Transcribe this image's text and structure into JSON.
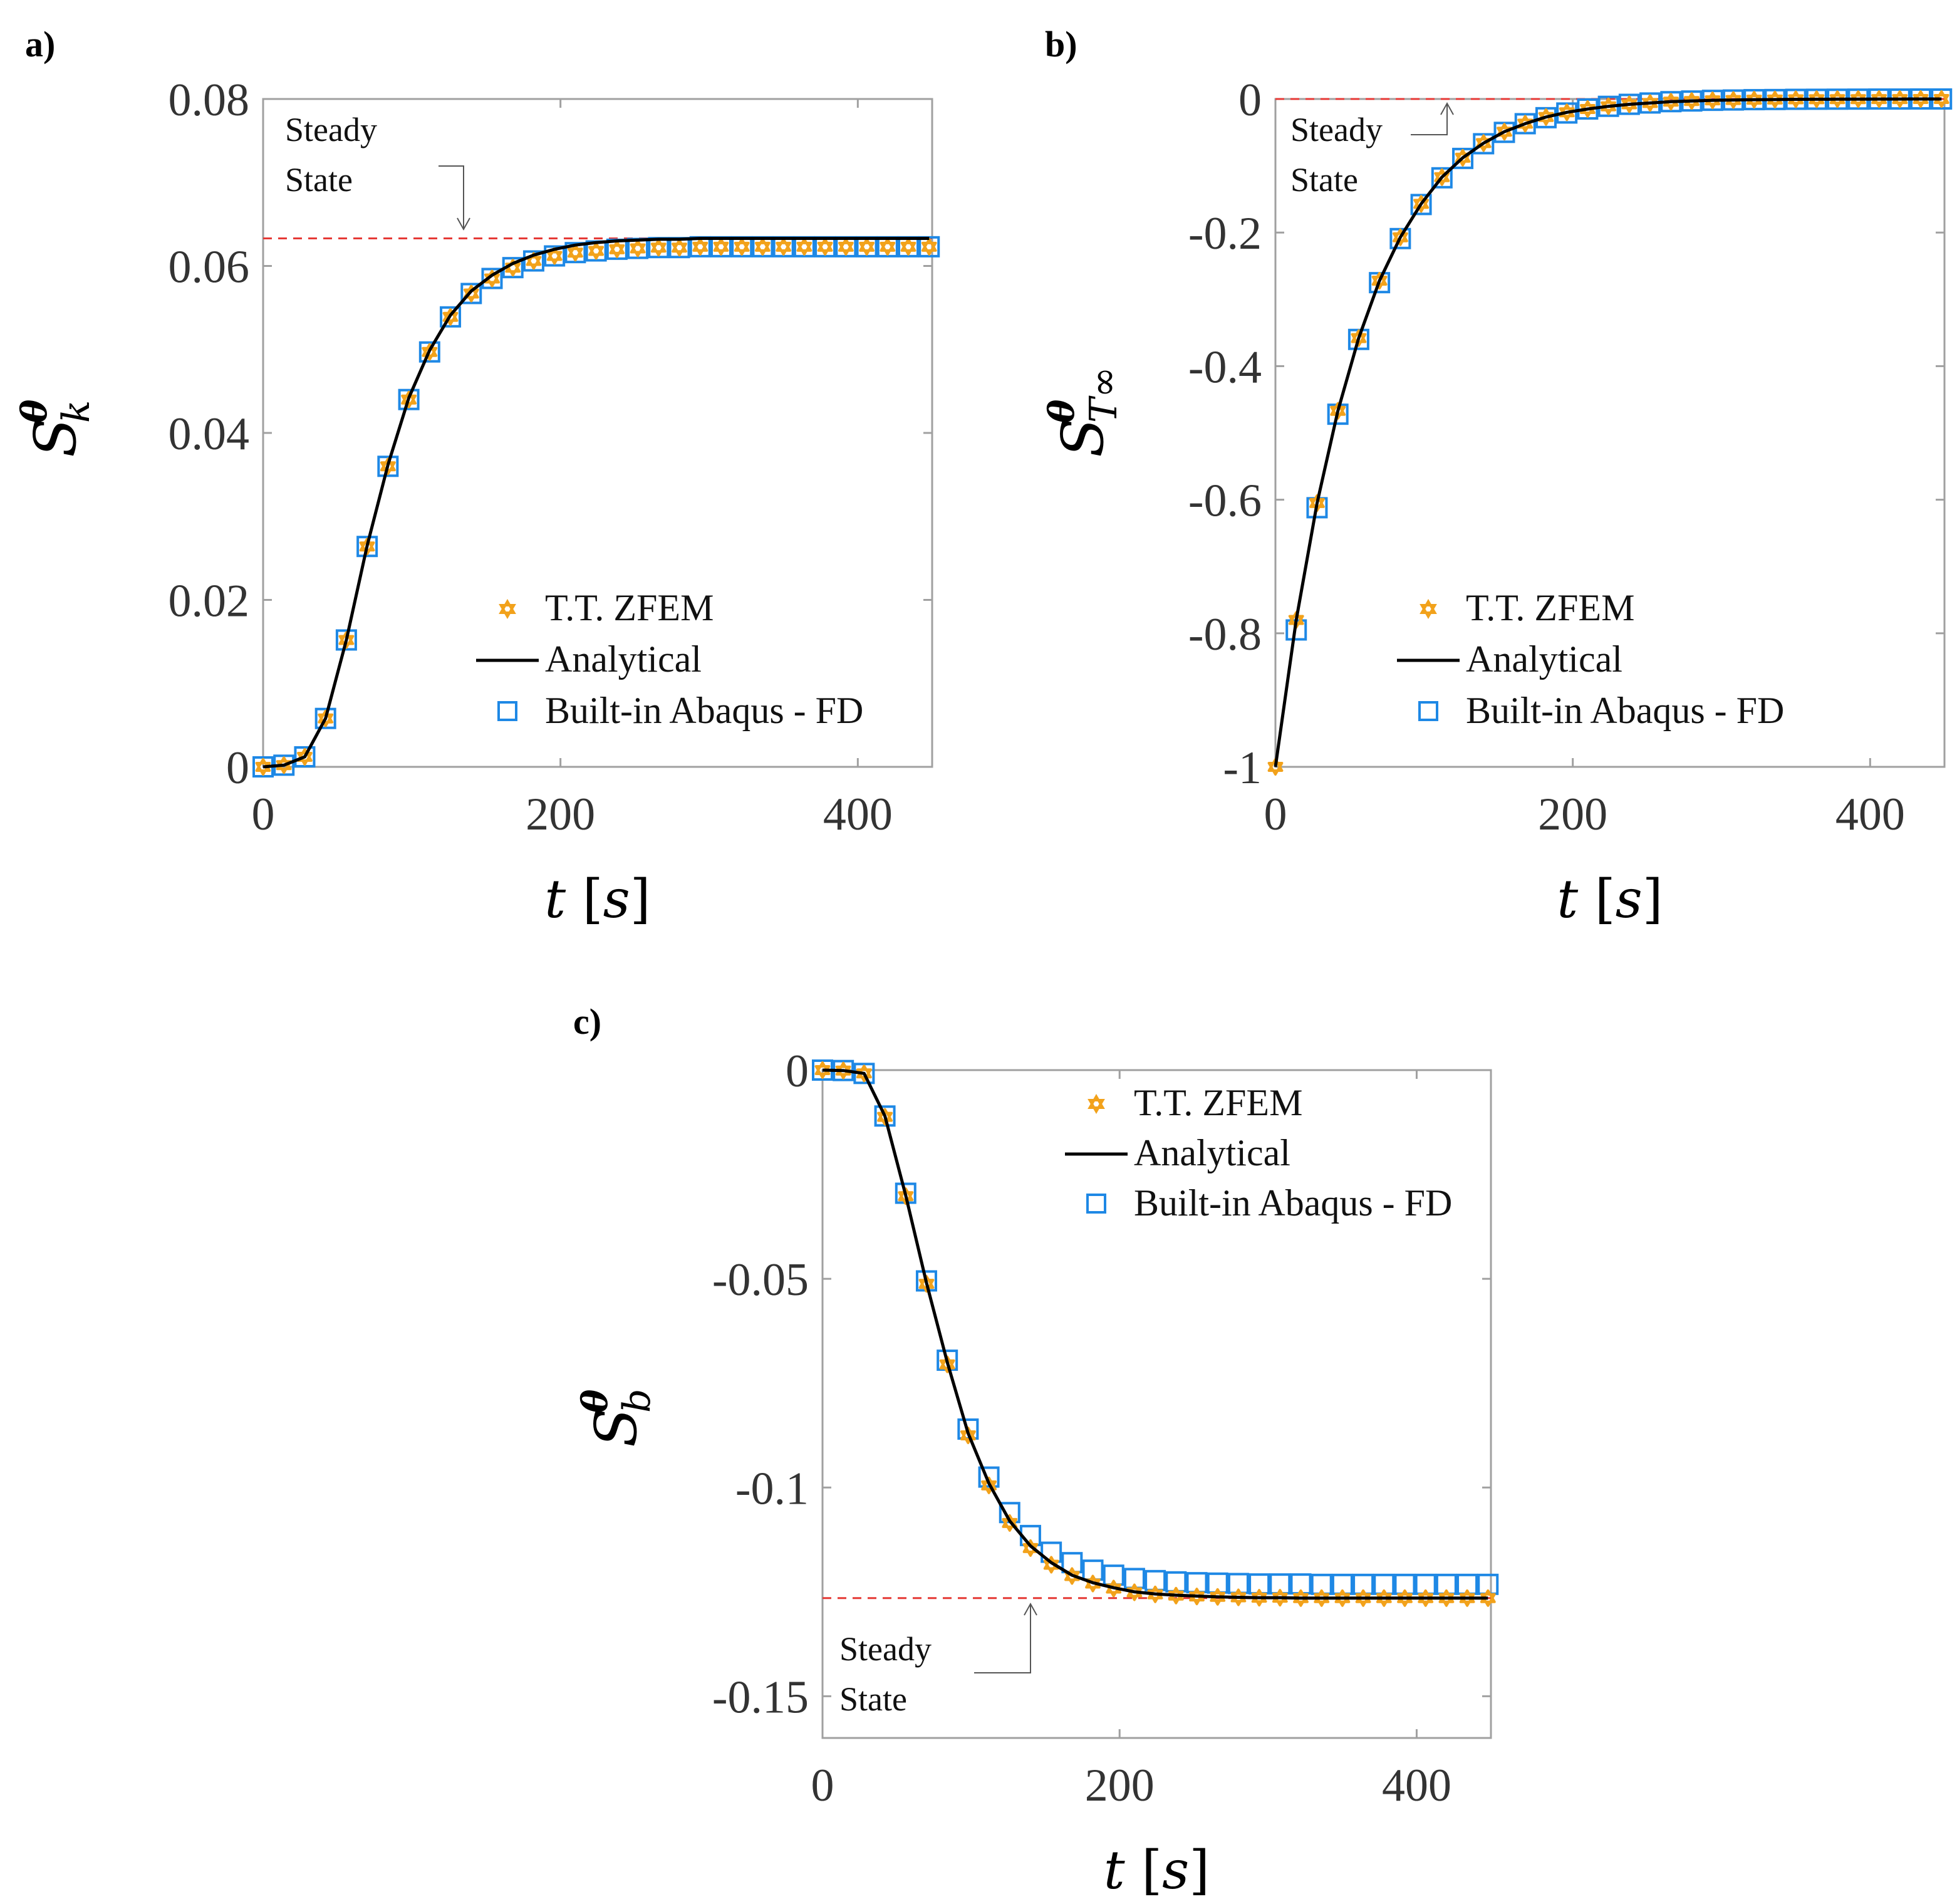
{
  "colors": {
    "zfem": "#F2A21B",
    "analytical": "#000000",
    "abaqus": "#1E88E5",
    "steady": "#E53935",
    "axis": "#a0a0a0",
    "tick_text": "#333333"
  },
  "legend": {
    "zfem": "T.T. ZFEM",
    "analytical": "Analytical",
    "abaqus": "Built-in Abaqus - FD"
  },
  "icons": {
    "zfem": "hexagram-marker-icon",
    "abaqus": "square-marker-icon"
  },
  "chart_data": [
    {
      "id": "a",
      "type": "line",
      "panel_label": "a)",
      "title": "",
      "xlabel": "t",
      "xunit": "s",
      "ylabel": "S",
      "ylabel_sup": "θ",
      "ylabel_sub": "k",
      "xlim": [
        0,
        450
      ],
      "ylim": [
        0,
        0.08
      ],
      "xticks": [
        0,
        200,
        400
      ],
      "xtick_labels": [
        "0",
        "200",
        "400"
      ],
      "yticks": [
        0,
        0.02,
        0.04,
        0.06,
        0.08
      ],
      "ytick_labels": [
        "0",
        "0.02",
        "0.04",
        "0.06",
        "0.08"
      ],
      "steady_state": 0.0633,
      "annotation": [
        "Steady",
        "State"
      ],
      "legend_position": "lower-right",
      "x": [
        0,
        14,
        28,
        42,
        56,
        70,
        84,
        98,
        112,
        126,
        140,
        154,
        168,
        182,
        196,
        210,
        224,
        238,
        252,
        266,
        280,
        294,
        308,
        322,
        336,
        350,
        364,
        378,
        392,
        406,
        420,
        434,
        448
      ],
      "series": [
        {
          "name": "Analytical",
          "values": [
            0,
            0.0002,
            0.0012,
            0.0058,
            0.0152,
            0.0265,
            0.0362,
            0.0442,
            0.0499,
            0.0541,
            0.057,
            0.0589,
            0.0603,
            0.0613,
            0.062,
            0.0625,
            0.0628,
            0.063,
            0.0631,
            0.0632,
            0.0632,
            0.0633,
            0.0633,
            0.0633,
            0.0633,
            0.0633,
            0.0633,
            0.0633,
            0.0633,
            0.0633,
            0.0633,
            0.0633,
            0.0633
          ]
        },
        {
          "name": "T.T. ZFEM",
          "values": [
            0,
            0.0002,
            0.0012,
            0.0058,
            0.0152,
            0.0264,
            0.036,
            0.044,
            0.0497,
            0.0539,
            0.0567,
            0.0585,
            0.0598,
            0.0606,
            0.0612,
            0.0616,
            0.0618,
            0.062,
            0.0621,
            0.0622,
            0.0622,
            0.0623,
            0.0623,
            0.0623,
            0.0623,
            0.0623,
            0.0623,
            0.0623,
            0.0623,
            0.0623,
            0.0623,
            0.0623,
            0.0623
          ]
        },
        {
          "name": "Built-in Abaqus - FD",
          "values": [
            0,
            0.0002,
            0.0012,
            0.0058,
            0.0152,
            0.0264,
            0.036,
            0.044,
            0.0497,
            0.0539,
            0.0567,
            0.0585,
            0.0598,
            0.0606,
            0.0612,
            0.0616,
            0.0618,
            0.062,
            0.0621,
            0.0622,
            0.0622,
            0.0623,
            0.0623,
            0.0623,
            0.0623,
            0.0623,
            0.0623,
            0.0623,
            0.0623,
            0.0623,
            0.0623,
            0.0623,
            0.0623
          ]
        }
      ]
    },
    {
      "id": "b",
      "type": "line",
      "panel_label": "b)",
      "title": "",
      "xlabel": "t",
      "xunit": "s",
      "ylabel": "S",
      "ylabel_sup": "θ",
      "ylabel_sub": "T∞",
      "xlim": [
        0,
        450
      ],
      "ylim": [
        -1,
        0
      ],
      "xticks": [
        0,
        200,
        400
      ],
      "xtick_labels": [
        "0",
        "200",
        "400"
      ],
      "yticks": [
        -1,
        -0.8,
        -0.6,
        -0.4,
        -0.2,
        0
      ],
      "ytick_labels": [
        "-1",
        "-0.8",
        "-0.6",
        "-0.4",
        "-0.2",
        "0"
      ],
      "steady_state": 0,
      "annotation": [
        "Steady",
        "State"
      ],
      "legend_position": "lower-right",
      "x": [
        0,
        14,
        28,
        42,
        56,
        70,
        84,
        98,
        112,
        126,
        140,
        154,
        168,
        182,
        196,
        210,
        224,
        238,
        252,
        266,
        280,
        294,
        308,
        322,
        336,
        350,
        364,
        378,
        392,
        406,
        420,
        434,
        448
      ],
      "series": [
        {
          "name": "Analytical",
          "values": [
            -1.0,
            -0.78,
            -0.605,
            -0.467,
            -0.358,
            -0.272,
            -0.207,
            -0.157,
            -0.117,
            -0.088,
            -0.066,
            -0.049,
            -0.037,
            -0.027,
            -0.02,
            -0.015,
            -0.011,
            -0.008,
            -0.006,
            -0.004,
            -0.003,
            -0.002,
            -0.0015,
            -0.001,
            -0.0008,
            -0.0005,
            -0.0004,
            -0.0003,
            -0.0002,
            -0.0001,
            -0.0001,
            0,
            0
          ]
        },
        {
          "name": "T.T. ZFEM",
          "values": [
            -1.0,
            -0.78,
            -0.605,
            -0.467,
            -0.358,
            -0.272,
            -0.207,
            -0.157,
            -0.117,
            -0.088,
            -0.066,
            -0.049,
            -0.037,
            -0.027,
            -0.02,
            -0.015,
            -0.011,
            -0.008,
            -0.006,
            -0.004,
            -0.003,
            -0.002,
            -0.0015,
            -0.001,
            -0.0008,
            -0.0005,
            -0.0004,
            -0.0003,
            -0.0002,
            -0.0001,
            -0.0001,
            0,
            0
          ]
        },
        {
          "name": "Built-in Abaqus - FD",
          "values": [
            null,
            -0.795,
            -0.612,
            -0.472,
            -0.36,
            -0.275,
            -0.209,
            -0.158,
            -0.118,
            -0.089,
            -0.067,
            -0.05,
            -0.037,
            -0.028,
            -0.021,
            -0.015,
            -0.011,
            -0.008,
            -0.006,
            -0.004,
            -0.003,
            -0.002,
            -0.0015,
            -0.001,
            -0.0008,
            -0.0005,
            -0.0004,
            -0.0003,
            -0.0002,
            -0.0001,
            -0.0001,
            0,
            0
          ]
        }
      ]
    },
    {
      "id": "c",
      "type": "line",
      "panel_label": "c)",
      "title": "",
      "xlabel": "t",
      "xunit": "s",
      "ylabel": "S",
      "ylabel_sup": "θ",
      "ylabel_sub": "b",
      "xlim": [
        0,
        450
      ],
      "ylim": [
        -0.16,
        0
      ],
      "xticks": [
        0,
        200,
        400
      ],
      "xtick_labels": [
        "0",
        "200",
        "400"
      ],
      "yticks": [
        -0.15,
        -0.1,
        -0.05,
        0
      ],
      "ytick_labels": [
        "-0.15",
        "-0.1",
        "-0.05",
        "0"
      ],
      "steady_state": -0.1265,
      "annotation": [
        "Steady",
        "State"
      ],
      "legend_position": "top-right",
      "x": [
        0,
        14,
        28,
        42,
        56,
        70,
        84,
        98,
        112,
        126,
        140,
        154,
        168,
        182,
        196,
        210,
        224,
        238,
        252,
        266,
        280,
        294,
        308,
        322,
        336,
        350,
        364,
        378,
        392,
        406,
        420,
        434,
        448
      ],
      "series": [
        {
          "name": "Analytical",
          "values": [
            0,
            -0.0001,
            -0.0008,
            -0.011,
            -0.03,
            -0.051,
            -0.07,
            -0.087,
            -0.099,
            -0.108,
            -0.114,
            -0.118,
            -0.121,
            -0.1228,
            -0.124,
            -0.125,
            -0.1255,
            -0.1258,
            -0.126,
            -0.1262,
            -0.1263,
            -0.1264,
            -0.1264,
            -0.1265,
            -0.1265,
            -0.1265,
            -0.1265,
            -0.1265,
            -0.1265,
            -0.1265,
            -0.1265,
            -0.1265,
            -0.1265
          ]
        },
        {
          "name": "T.T. ZFEM",
          "values": [
            0,
            -0.0001,
            -0.0008,
            -0.0112,
            -0.0302,
            -0.0512,
            -0.0705,
            -0.0875,
            -0.0995,
            -0.1085,
            -0.1145,
            -0.1185,
            -0.1212,
            -0.123,
            -0.1242,
            -0.1251,
            -0.1256,
            -0.1259,
            -0.1261,
            -0.1262,
            -0.1263,
            -0.1264,
            -0.1264,
            -0.1265,
            -0.1265,
            -0.1265,
            -0.1265,
            -0.1265,
            -0.1265,
            -0.1265,
            -0.1265,
            -0.1265,
            -0.1265
          ]
        },
        {
          "name": "Built-in Abaqus - FD",
          "values": [
            0,
            -0.0001,
            -0.0008,
            -0.011,
            -0.0295,
            -0.0505,
            -0.0695,
            -0.086,
            -0.0975,
            -0.106,
            -0.1115,
            -0.1155,
            -0.118,
            -0.1198,
            -0.121,
            -0.1218,
            -0.1223,
            -0.1226,
            -0.1228,
            -0.1229,
            -0.123,
            -0.1231,
            -0.1231,
            -0.1231,
            -0.1232,
            -0.1232,
            -0.1232,
            -0.1232,
            -0.1232,
            -0.1232,
            -0.1232,
            -0.1232,
            -0.1232
          ]
        }
      ]
    }
  ]
}
